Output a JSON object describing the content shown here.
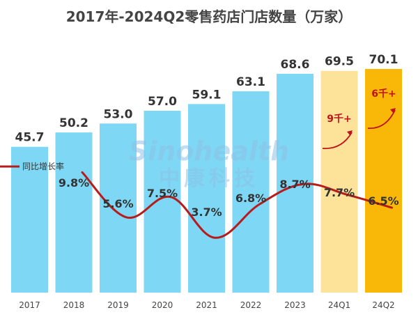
{
  "watermark": {
    "en": "Sinohealth",
    "cn": "中康科技"
  },
  "chart_data": {
    "type": "bar",
    "title": "2017年-2024Q2零售药店门店数量（万家）",
    "categories": [
      "2017",
      "2018",
      "2019",
      "2020",
      "2021",
      "2022",
      "2023",
      "24Q1",
      "24Q2"
    ],
    "series": [
      {
        "values": [
          45.7,
          50.2,
          53.0,
          57.0,
          59.1,
          63.1,
          68.6,
          69.5,
          70.1
        ]
      },
      {
        "name": "同比增长率",
        "type": "line",
        "values_text": [
          "",
          "9.8%",
          "5.6%",
          "7.5%",
          "3.7%",
          "6.8%",
          "8.7%",
          "7.7%",
          "6.5%"
        ]
      }
    ],
    "value_labels": [
      "45.7",
      "50.2",
      "53.0",
      "57.0",
      "59.1",
      "63.1",
      "68.6",
      "69.5",
      "70.1"
    ],
    "growth_values": [
      null,
      9.8,
      5.6,
      7.5,
      3.7,
      6.8,
      8.7,
      7.7,
      6.5
    ],
    "annotations": [
      {
        "category": "24Q1",
        "text": "9千+"
      },
      {
        "category": "24Q2",
        "text": "6千+"
      }
    ],
    "colors": {
      "bar": "#7dd7f5",
      "bar_24q1": "#fde29a",
      "bar_24q2": "#f9b807",
      "line": "#b71c1c",
      "note": "#c0121b"
    },
    "ylim": [
      0,
      75
    ],
    "legend": "left",
    "grid": false
  }
}
